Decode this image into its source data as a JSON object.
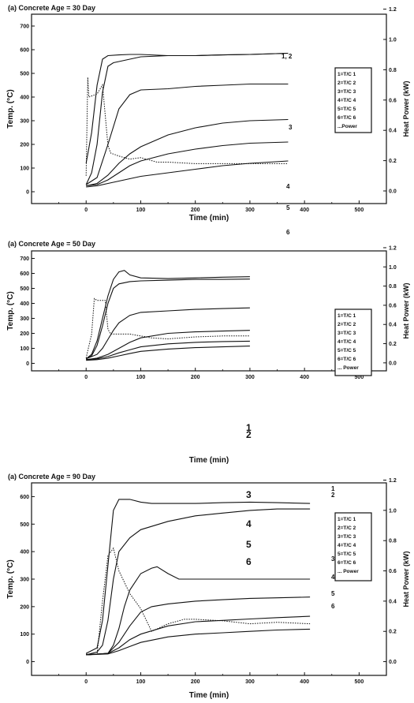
{
  "chart_data": [
    {
      "type": "line",
      "title": "(a) Concrete Age = 30 Day",
      "xlabel": "Time (min)",
      "ylabel": "Temp. (°C)",
      "y2label": "Heat Power (kW)",
      "xlim": [
        -100,
        550
      ],
      "ylim": [
        -50,
        750
      ],
      "y2lim": [
        -0.0833,
        1.1667
      ],
      "xticks": [
        "0",
        "100",
        "200",
        "300",
        "400",
        "500"
      ],
      "yticks": [
        "0",
        "100",
        "200",
        "300",
        "400",
        "500",
        "600",
        "700"
      ],
      "y2ticks": [
        "0.0",
        "0.2",
        "0.4",
        "0.6",
        "0.8",
        "1.0",
        "1.2"
      ],
      "legend": [
        "1=T/C 1",
        "2=T/C 2",
        "3=T/C 3",
        "4=T/C 4",
        "5=T/C 5",
        "6=T/C 6",
        "...Power"
      ],
      "legend_position": "right",
      "curve_labels": [
        "1, 2",
        "3",
        "4",
        "5",
        "6"
      ],
      "series": [
        {
          "x": [
            0,
            10,
            20,
            30,
            40,
            60,
            80,
            100,
            150,
            200,
            250,
            300,
            370
          ],
          "y": [
            120,
            250,
            450,
            560,
            575,
            578,
            580,
            580,
            575,
            575,
            578,
            580,
            585
          ]
        },
        {
          "x": [
            0,
            10,
            20,
            30,
            40,
            50,
            60,
            100,
            150,
            200,
            250,
            300,
            370
          ],
          "y": [
            30,
            80,
            200,
            420,
            530,
            545,
            550,
            570,
            575,
            575,
            578,
            580,
            585
          ]
        },
        {
          "x": [
            0,
            20,
            40,
            60,
            80,
            100,
            150,
            200,
            250,
            300,
            370
          ],
          "y": [
            30,
            60,
            200,
            350,
            410,
            430,
            435,
            445,
            450,
            455,
            455
          ]
        },
        {
          "x": [
            0,
            20,
            40,
            60,
            80,
            100,
            150,
            200,
            250,
            300,
            370
          ],
          "y": [
            25,
            35,
            70,
            120,
            160,
            190,
            240,
            270,
            290,
            300,
            305
          ]
        },
        {
          "x": [
            0,
            20,
            40,
            60,
            80,
            100,
            150,
            200,
            250,
            300,
            370
          ],
          "y": [
            25,
            30,
            50,
            80,
            110,
            130,
            160,
            180,
            195,
            205,
            210
          ]
        },
        {
          "x": [
            0,
            20,
            40,
            60,
            80,
            100,
            150,
            200,
            250,
            300,
            370
          ],
          "y": [
            20,
            25,
            35,
            45,
            55,
            65,
            80,
            95,
            110,
            120,
            130
          ]
        },
        {
          "axis": "y2",
          "dotted": true,
          "x": [
            0,
            3,
            5,
            20,
            30,
            40,
            45,
            60,
            80,
            100,
            130,
            150,
            200,
            300,
            370
          ],
          "y": [
            0.1,
            0.75,
            0.62,
            0.64,
            0.7,
            0.3,
            0.25,
            0.23,
            0.21,
            0.22,
            0.19,
            0.19,
            0.18,
            0.18,
            0.18
          ]
        }
      ]
    },
    {
      "type": "line",
      "title": "(a) Concrete Age = 50 Day",
      "xlabel": "Time (min)",
      "ylabel": "Temp. (°C)",
      "y2label": "Heat Power (kW)",
      "xlim": [
        -100,
        550
      ],
      "ylim": [
        -50,
        750
      ],
      "y2lim": [
        -0.0833,
        1.1667
      ],
      "xticks": [
        "0",
        "100",
        "200",
        "300",
        "400",
        "500"
      ],
      "yticks": [
        "0",
        "100",
        "200",
        "300",
        "400",
        "500",
        "600",
        "700"
      ],
      "y2ticks": [
        "0.0",
        "0.2",
        "0.4",
        "0.6",
        "0.8",
        "1.0",
        "1.2"
      ],
      "legend": [
        "1=T/C 1",
        "2=T/C 2",
        "3=T/C 3",
        "4=T/C 4",
        "5=T/C 5",
        "6=T/C 6",
        "... Power"
      ],
      "legend_position": "right",
      "curve_labels": [
        "1",
        "2",
        "3",
        "4",
        "5",
        "6"
      ],
      "series": [
        {
          "x": [
            0,
            10,
            20,
            30,
            40,
            50,
            60,
            70,
            80,
            100,
            150,
            200,
            250,
            300
          ],
          "y": [
            30,
            60,
            150,
            300,
            450,
            560,
            610,
            620,
            590,
            570,
            565,
            570,
            575,
            578
          ]
        },
        {
          "x": [
            0,
            10,
            20,
            30,
            40,
            50,
            60,
            80,
            100,
            150,
            200,
            250,
            300
          ],
          "y": [
            30,
            50,
            120,
            250,
            400,
            500,
            530,
            545,
            550,
            555,
            560,
            560,
            562
          ]
        },
        {
          "x": [
            0,
            20,
            30,
            40,
            50,
            60,
            80,
            100,
            150,
            200,
            250,
            300
          ],
          "y": [
            30,
            60,
            100,
            160,
            220,
            270,
            320,
            340,
            350,
            360,
            365,
            370
          ]
        },
        {
          "x": [
            0,
            20,
            40,
            60,
            80,
            100,
            150,
            200,
            250,
            300
          ],
          "y": [
            25,
            35,
            60,
            100,
            140,
            170,
            200,
            210,
            215,
            220
          ]
        },
        {
          "x": [
            0,
            20,
            40,
            60,
            80,
            100,
            150,
            200,
            250,
            300
          ],
          "y": [
            25,
            30,
            45,
            70,
            90,
            110,
            130,
            140,
            145,
            148
          ]
        },
        {
          "x": [
            0,
            20,
            40,
            60,
            80,
            100,
            150,
            200,
            250,
            300
          ],
          "y": [
            20,
            25,
            35,
            50,
            65,
            80,
            95,
            105,
            110,
            115
          ]
        },
        {
          "axis": "y2",
          "dotted": true,
          "x": [
            0,
            10,
            15,
            20,
            35,
            40,
            45,
            60,
            80,
            100,
            120,
            150,
            200,
            250,
            300
          ],
          "y": [
            0.05,
            0.3,
            0.67,
            0.65,
            0.65,
            0.35,
            0.3,
            0.3,
            0.3,
            0.28,
            0.26,
            0.25,
            0.27,
            0.28,
            0.28
          ]
        }
      ]
    },
    {
      "type": "line",
      "title": "(a) Concrete Age = 90 Day",
      "xlabel": "Time (min)",
      "ylabel": "Temp. (°C)",
      "y2label": "Heat Power (kW)",
      "xlim": [
        -100,
        550
      ],
      "ylim": [
        -50,
        650
      ],
      "y2lim": [
        -0.0909,
        1.1818
      ],
      "xticks": [
        "0",
        "100",
        "200",
        "300",
        "400",
        "500"
      ],
      "yticks": [
        "0",
        "100",
        "200",
        "300",
        "400",
        "500",
        "600"
      ],
      "y2ticks": [
        "0.0",
        "0.2",
        "0.4",
        "0.6",
        "0.8",
        "1.0",
        "1.2"
      ],
      "legend": [
        "1=T/C 1",
        "2=T/C 2",
        "3=T/C 3",
        "4=T/C 4",
        "5=T/C 5",
        "6=T/C 6",
        "... Power"
      ],
      "legend_position": "right",
      "curve_labels": [
        "1",
        "2",
        "3",
        "4",
        "5",
        "6"
      ],
      "series": [
        {
          "x": [
            0,
            20,
            30,
            40,
            50,
            60,
            80,
            100,
            120,
            150,
            200,
            250,
            300,
            350,
            410
          ],
          "y": [
            30,
            50,
            150,
            350,
            550,
            590,
            590,
            580,
            575,
            575,
            575,
            578,
            580,
            578,
            575
          ]
        },
        {
          "x": [
            0,
            20,
            30,
            40,
            50,
            60,
            80,
            100,
            150,
            200,
            250,
            300,
            350,
            410
          ],
          "y": [
            25,
            35,
            60,
            150,
            300,
            400,
            450,
            480,
            510,
            530,
            540,
            550,
            555,
            555
          ]
        },
        {
          "x": [
            0,
            40,
            50,
            60,
            70,
            80,
            100,
            120,
            130,
            150,
            170,
            200,
            250,
            300,
            410
          ],
          "y": [
            25,
            30,
            60,
            120,
            200,
            260,
            320,
            340,
            345,
            320,
            300,
            300,
            300,
            300,
            300
          ]
        },
        {
          "x": [
            0,
            40,
            60,
            80,
            100,
            120,
            150,
            200,
            250,
            300,
            350,
            410
          ],
          "y": [
            25,
            30,
            70,
            130,
            180,
            200,
            210,
            220,
            225,
            230,
            232,
            235
          ]
        },
        {
          "x": [
            0,
            40,
            60,
            80,
            100,
            150,
            200,
            250,
            300,
            350,
            410
          ],
          "y": [
            25,
            30,
            50,
            80,
            100,
            130,
            145,
            150,
            155,
            160,
            165
          ]
        },
        {
          "x": [
            0,
            40,
            60,
            80,
            100,
            150,
            200,
            250,
            300,
            350,
            410
          ],
          "y": [
            25,
            28,
            40,
            55,
            70,
            90,
            100,
            105,
            110,
            115,
            118
          ]
        },
        {
          "axis": "y2",
          "dotted": true,
          "x": [
            0,
            20,
            30,
            40,
            50,
            60,
            80,
            100,
            120,
            150,
            180,
            200,
            250,
            300,
            350,
            410
          ],
          "y": [
            0.05,
            0.05,
            0.4,
            0.7,
            0.75,
            0.6,
            0.45,
            0.35,
            0.2,
            0.25,
            0.28,
            0.28,
            0.27,
            0.25,
            0.26,
            0.25
          ]
        }
      ]
    }
  ]
}
